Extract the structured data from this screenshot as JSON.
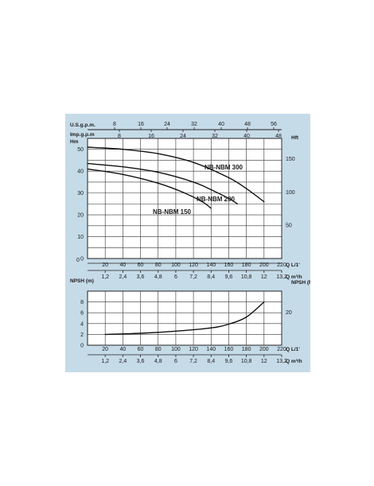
{
  "chart_data": [
    {
      "type": "line",
      "title": "",
      "ylabel": "Hm",
      "ylabel_right": "Hft",
      "xlabel": "Q L/1'",
      "xlabel_alt": "Q m³/h",
      "xlim": [
        0,
        240
      ],
      "ylim": [
        0,
        55
      ],
      "x_ticks": [
        "20",
        "40",
        "60",
        "80",
        "100",
        "120",
        "140",
        "160",
        "180",
        "200",
        "220"
      ],
      "x_ticks_m3h": [
        "1,2",
        "2,4",
        "3,6",
        "4,8",
        "6",
        "7,2",
        "8,4",
        "9,6",
        "10,8",
        "12",
        "13,2"
      ],
      "y_ticks": [
        "0",
        "10",
        "20",
        "30",
        "40",
        "50"
      ],
      "y_ticks_right": [
        "50",
        "100",
        "150"
      ],
      "top_axis_us_label": "U.S.g.p.m.",
      "top_axis_us_ticks": [
        "8",
        "16",
        "24",
        "32",
        "40",
        "48",
        "56"
      ],
      "top_axis_imp_label": "Imp.g.p.m",
      "top_axis_imp_ticks": [
        "8",
        "16",
        "24",
        "32",
        "40",
        "48"
      ],
      "grid": true,
      "series": [
        {
          "name": "NB-NBM 300",
          "x": [
            0,
            40,
            80,
            120,
            160,
            180,
            200
          ],
          "values": [
            51,
            50,
            48,
            44,
            37,
            32,
            26
          ]
        },
        {
          "name": "NB-NBM 200",
          "x": [
            0,
            40,
            80,
            120,
            140,
            160,
            170
          ],
          "values": [
            43.5,
            42,
            39.5,
            35,
            31.5,
            27.5,
            25
          ]
        },
        {
          "name": "NB-NBM 150",
          "x": [
            0,
            40,
            80,
            110,
            130,
            140
          ],
          "values": [
            41,
            38.5,
            34.5,
            30,
            26,
            23
          ]
        }
      ]
    },
    {
      "type": "line",
      "title": "",
      "ylabel": "NPSH (m)",
      "ylabel_right": "NPSH (Ft)",
      "xlabel": "Q L/1'",
      "xlabel_alt": "Q m³/h",
      "xlim": [
        0,
        240
      ],
      "ylim": [
        0,
        10
      ],
      "x_ticks": [
        "20",
        "40",
        "60",
        "80",
        "100",
        "120",
        "140",
        "160",
        "180",
        "200",
        "220"
      ],
      "x_ticks_m3h": [
        "1,2",
        "2,4",
        "3,6",
        "4,8",
        "6",
        "7,2",
        "8,4",
        "9,6",
        "10,8",
        "12",
        "13,2"
      ],
      "y_ticks": [
        "0",
        "2",
        "4",
        "6",
        "8"
      ],
      "y_ticks_right": [
        "20"
      ],
      "grid": true,
      "series": [
        {
          "name": "",
          "x": [
            20,
            60,
            100,
            140,
            160,
            180,
            200
          ],
          "values": [
            2,
            2.2,
            2.6,
            3.2,
            3.9,
            5.2,
            8
          ]
        }
      ]
    }
  ]
}
